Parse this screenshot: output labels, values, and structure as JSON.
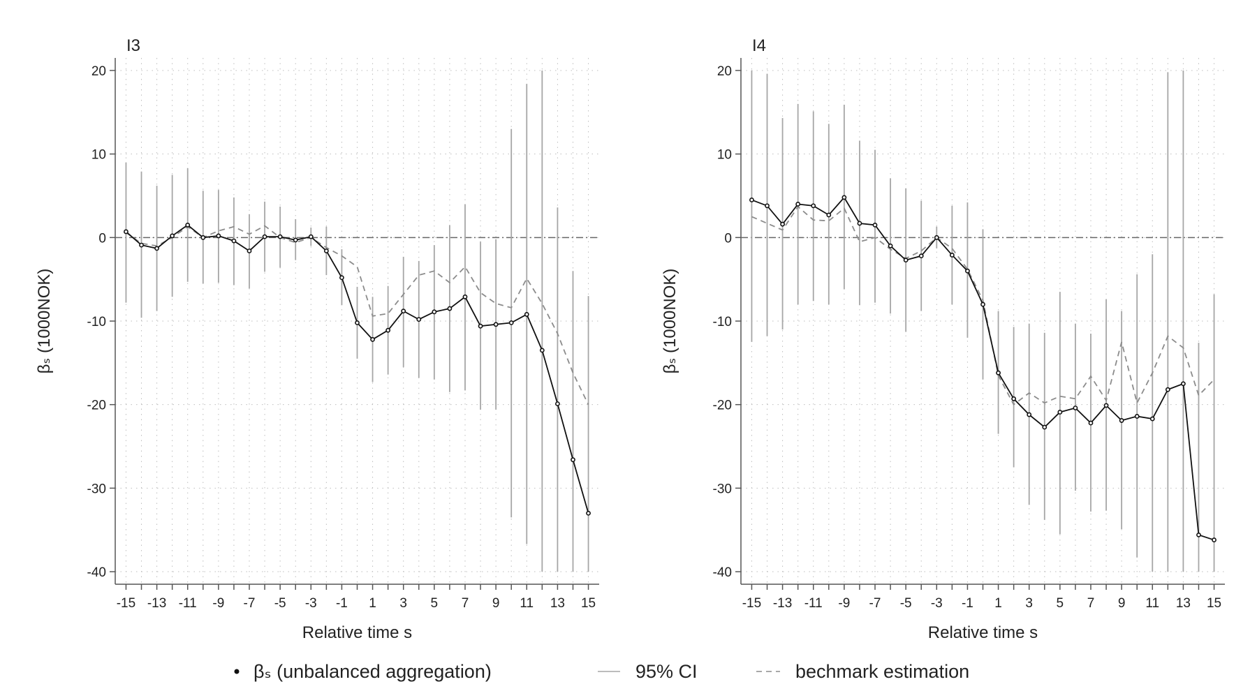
{
  "colors": {
    "beta_line": "#111111",
    "ci": "#a6a6a6",
    "benchmark": "#8c8c8c",
    "grid": "#bdbdbd",
    "zero_line": "#666666",
    "axis": "#555555"
  },
  "legend": {
    "beta_label": "βₛ (unbalanced aggregation)",
    "ci_label": "95% CI",
    "benchmark_label": "bechmark estimation"
  },
  "chart_data": [
    {
      "type": "line",
      "title": "I3",
      "xlabel": "Relative time s",
      "ylabel": "βₛ (1000NOK)",
      "xlim": [
        -15.7,
        15.7
      ],
      "ylim": [
        -41.5,
        21.5
      ],
      "x_ticks": [
        -15,
        -13,
        -11,
        -9,
        -7,
        -5,
        -3,
        -1,
        1,
        3,
        5,
        7,
        9,
        11,
        13,
        15
      ],
      "x_tick_labels": [
        "-15",
        "-13",
        "-11",
        "-9",
        "-7",
        "-5",
        "-3",
        "-1",
        "1",
        "3",
        "5",
        "7",
        "9",
        "11",
        "13",
        "15"
      ],
      "y_ticks": [
        20,
        10,
        0,
        -10,
        -20,
        -30,
        -40
      ],
      "y_tick_labels": [
        "20",
        "10",
        "0",
        "-10",
        "-20",
        "-30",
        "-40"
      ],
      "x": [
        -15,
        -14,
        -13,
        -12,
        -11,
        -10,
        -9,
        -8,
        -7,
        -6,
        -5,
        -4,
        -3,
        -2,
        -1,
        0,
        1,
        2,
        3,
        4,
        5,
        6,
        7,
        8,
        9,
        10,
        11,
        12,
        13,
        14,
        15
      ],
      "series": [
        {
          "name": "βₛ (unbalanced aggregation)",
          "values": [
            0.7,
            -0.9,
            -1.3,
            0.2,
            1.5,
            0.0,
            0.2,
            -0.4,
            -1.6,
            0.1,
            0.1,
            -0.3,
            0.1,
            -1.6,
            -4.8,
            -10.2,
            -12.2,
            -11.1,
            -8.8,
            -9.8,
            -8.9,
            -8.5,
            -7.1,
            -10.6,
            -10.4,
            -10.2,
            -9.2,
            -13.5,
            -19.9,
            -26.6,
            -33.0
          ]
        },
        {
          "name": "bechmark estimation",
          "values": [
            0.6,
            -0.7,
            -1.0,
            0.0,
            1.3,
            0.0,
            0.8,
            1.3,
            0.4,
            1.4,
            0.0,
            -0.6,
            0.0,
            -1.2,
            -2.2,
            -3.5,
            -9.4,
            -9.1,
            -6.8,
            -4.5,
            -4.0,
            -5.4,
            -3.5,
            -6.6,
            -7.9,
            -8.4,
            -4.9,
            -7.9,
            -11.5,
            -16.2,
            -20.0
          ]
        }
      ],
      "ci": {
        "lower": [
          -7.8,
          -9.6,
          -8.8,
          -7.1,
          -5.3,
          -5.5,
          -5.4,
          -5.7,
          -6.1,
          -4.1,
          -3.6,
          -2.7,
          -1.0,
          -4.5,
          -8.1,
          -14.5,
          -17.3,
          -16.4,
          -15.5,
          -16.8,
          -17.0,
          -18.5,
          -18.3,
          -20.6,
          -20.6,
          -33.5,
          -36.7,
          -40.0,
          -40.0,
          -40.0,
          -40.0
        ],
        "upper": [
          9.0,
          7.9,
          6.2,
          7.5,
          8.3,
          5.6,
          5.7,
          4.8,
          2.8,
          4.3,
          3.7,
          2.2,
          1.2,
          1.3,
          -1.4,
          -5.9,
          -7.1,
          -5.8,
          -2.3,
          -2.8,
          -0.9,
          1.5,
          4.0,
          -0.5,
          -0.2,
          13.0,
          18.4,
          20.0,
          3.6,
          -4.0,
          -7.0
        ]
      }
    },
    {
      "type": "line",
      "title": "I4",
      "xlabel": "Relative time s",
      "ylabel": "βₛ (1000NOK)",
      "xlim": [
        -15.7,
        15.7
      ],
      "ylim": [
        -41.5,
        21.5
      ],
      "x_ticks": [
        -15,
        -13,
        -11,
        -9,
        -7,
        -5,
        -3,
        -1,
        1,
        3,
        5,
        7,
        9,
        11,
        13,
        15
      ],
      "x_tick_labels": [
        "-15",
        "-13",
        "-11",
        "-9",
        "-7",
        "-5",
        "-3",
        "-1",
        "1",
        "3",
        "5",
        "7",
        "9",
        "11",
        "13",
        "15"
      ],
      "y_ticks": [
        20,
        10,
        0,
        -10,
        -20,
        -30,
        -40
      ],
      "y_tick_labels": [
        "20",
        "10",
        "0",
        "-10",
        "-20",
        "-30",
        "-40"
      ],
      "x": [
        -15,
        -14,
        -13,
        -12,
        -11,
        -10,
        -9,
        -8,
        -7,
        -6,
        -5,
        -4,
        -3,
        -2,
        -1,
        0,
        1,
        2,
        3,
        4,
        5,
        6,
        7,
        8,
        9,
        10,
        11,
        12,
        13,
        14,
        15
      ],
      "series": [
        {
          "name": "βₛ (unbalanced aggregation)",
          "values": [
            4.5,
            3.8,
            1.6,
            4.0,
            3.8,
            2.7,
            4.8,
            1.7,
            1.5,
            -1.0,
            -2.7,
            -2.2,
            0.0,
            -2.1,
            -4.0,
            -8.0,
            -16.2,
            -19.3,
            -21.2,
            -22.7,
            -20.9,
            -20.4,
            -22.2,
            -20.1,
            -21.9,
            -21.4,
            -21.7,
            -18.2,
            -17.5,
            -35.6,
            -36.2
          ]
        },
        {
          "name": "bechmark estimation",
          "values": [
            2.5,
            1.7,
            0.9,
            3.7,
            2.1,
            2.0,
            3.5,
            -0.5,
            0.0,
            -1.4,
            -2.5,
            -1.6,
            0.0,
            -1.3,
            -3.8,
            -7.5,
            -16.5,
            -20.0,
            -18.6,
            -19.8,
            -19.0,
            -19.3,
            -16.6,
            -19.5,
            -12.5,
            -19.8,
            -16.2,
            -11.8,
            -13.2,
            -18.9,
            -17.0
          ]
        }
      ],
      "ci": {
        "lower": [
          -12.5,
          -11.8,
          -11.0,
          -8.0,
          -7.6,
          -8.0,
          -6.2,
          -8.1,
          -7.8,
          -9.1,
          -11.3,
          -8.8,
          -1.3,
          -8.0,
          -12.0,
          -17.0,
          -23.5,
          -27.5,
          -32.0,
          -33.8,
          -35.5,
          -30.3,
          -32.8,
          -32.7,
          -34.9,
          -38.3,
          -40.0,
          -40.0,
          -40.0,
          -40.0,
          -40.0
        ],
        "upper": [
          20.0,
          19.6,
          14.3,
          16.0,
          15.1,
          13.6,
          15.9,
          11.6,
          10.5,
          7.1,
          5.9,
          4.4,
          1.3,
          3.8,
          4.2,
          1.0,
          -8.8,
          -10.7,
          -10.3,
          -11.4,
          -6.5,
          -10.3,
          -11.5,
          -7.4,
          -8.8,
          -4.4,
          -2.0,
          19.8,
          20.0,
          -12.6,
          -6.8
        ]
      }
    }
  ]
}
